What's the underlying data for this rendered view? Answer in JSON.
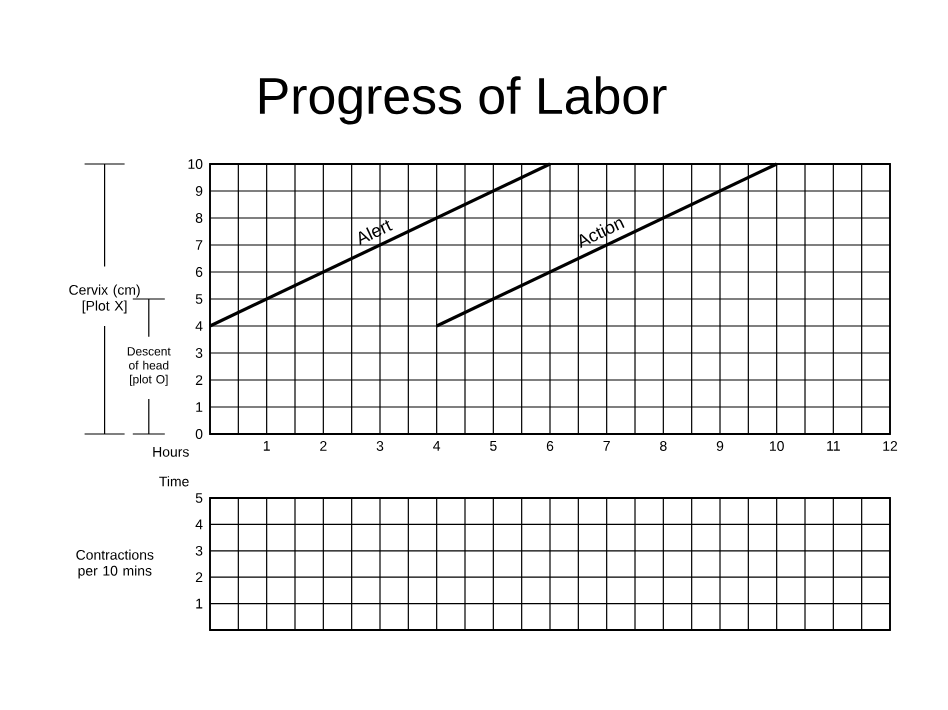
{
  "chart_data": [
    {
      "type": "line",
      "title": "Progress of Labor",
      "ylabel": "Cervix (cm) [Plot X]",
      "xlabel": "Hours",
      "annotations": [
        "Descent of head [plot O]",
        "Time"
      ],
      "xlim": [
        0,
        12
      ],
      "ylim": [
        0,
        10
      ],
      "xticks": [
        {
          "value": 0,
          "label": null
        },
        {
          "value": 0.5,
          "label": null
        },
        1,
        {
          "value": 1.5,
          "label": null
        },
        2,
        {
          "value": 2.5,
          "label": null
        },
        3,
        {
          "value": 3.5,
          "label": null
        },
        4,
        {
          "value": 4.5,
          "label": null
        },
        5,
        {
          "value": 5.5,
          "label": null
        },
        6,
        {
          "value": 6.5,
          "label": null
        },
        7,
        {
          "value": 7.5,
          "label": null
        },
        8,
        {
          "value": 8.5,
          "label": null
        },
        9,
        {
          "value": 9.5,
          "label": null
        },
        10,
        {
          "value": 10.5,
          "label": null
        },
        11,
        {
          "value": 11.5,
          "label": null
        },
        12
      ],
      "yticks": [
        0,
        1,
        2,
        3,
        4,
        5,
        6,
        7,
        8,
        9,
        10
      ],
      "grid": true,
      "series": [
        {
          "name": "Alert",
          "color": "#000000",
          "x": [
            0,
            6
          ],
          "values": [
            4,
            10
          ]
        },
        {
          "name": "Action",
          "color": "#000000",
          "x": [
            4,
            10
          ],
          "values": [
            4,
            10
          ]
        }
      ]
    },
    {
      "type": "line",
      "ylabel": "Contractions per 10 mins",
      "xlim": [
        0,
        12
      ],
      "ylim": [
        0,
        5
      ],
      "xticks": [
        {
          "value": 0,
          "label": null
        },
        {
          "value": 0.5,
          "label": null
        },
        {
          "value": 1,
          "label": null
        },
        {
          "value": 1.5,
          "label": null
        },
        {
          "value": 2,
          "label": null
        },
        {
          "value": 2.5,
          "label": null
        },
        {
          "value": 3,
          "label": null
        },
        {
          "value": 3.5,
          "label": null
        },
        {
          "value": 4,
          "label": null
        },
        {
          "value": 4.5,
          "label": null
        },
        {
          "value": 5,
          "label": null
        },
        {
          "value": 5.5,
          "label": null
        },
        {
          "value": 6,
          "label": null
        },
        {
          "value": 6.5,
          "label": null
        },
        {
          "value": 7,
          "label": null
        },
        {
          "value": 7.5,
          "label": null
        },
        {
          "value": 8,
          "label": null
        },
        {
          "value": 8.5,
          "label": null
        },
        {
          "value": 9,
          "label": null
        },
        {
          "value": 9.5,
          "label": null
        },
        {
          "value": 10,
          "label": null
        },
        {
          "value": 10.5,
          "label": null
        },
        {
          "value": 11,
          "label": null
        },
        {
          "value": 11.5,
          "label": null
        },
        {
          "value": 12,
          "label": null
        }
      ],
      "yticks": [
        1,
        2,
        3,
        4,
        5
      ],
      "grid": true,
      "tick_labels": "y"
    }
  ]
}
